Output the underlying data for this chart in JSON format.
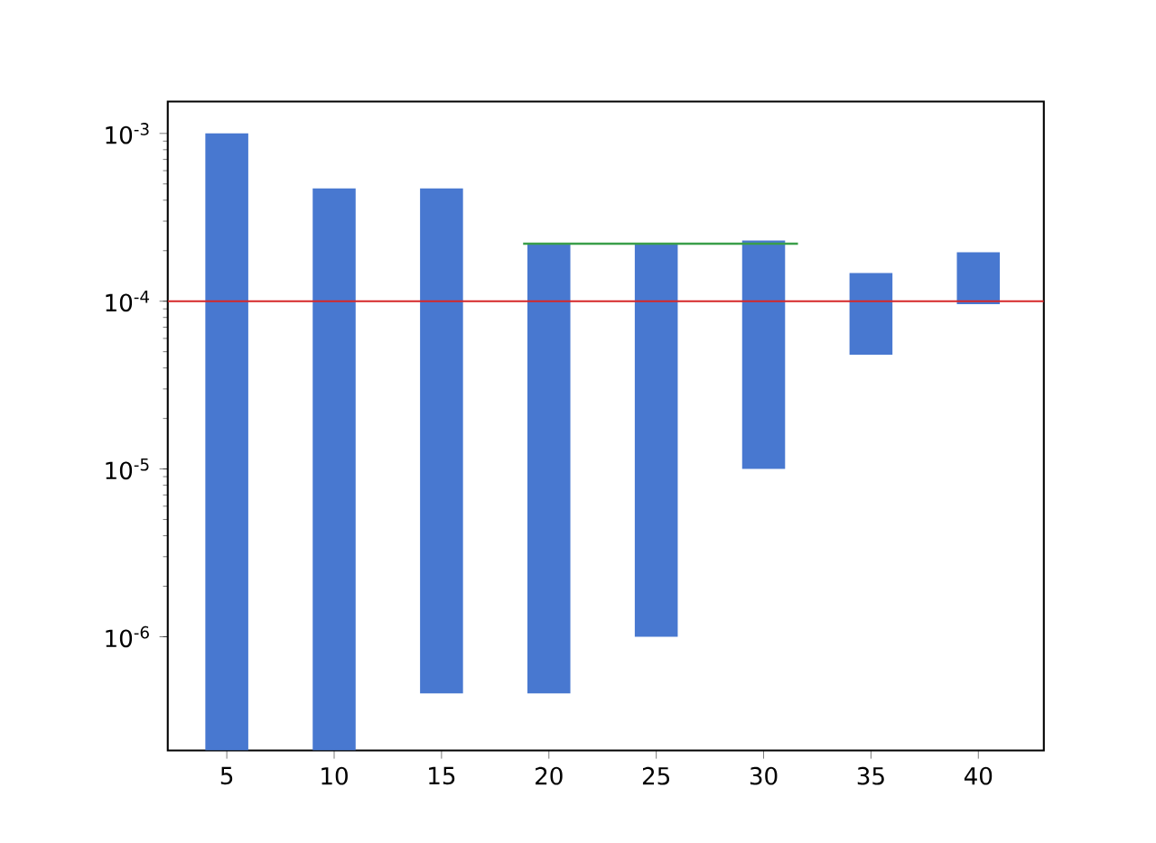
{
  "chart_data": {
    "type": "bar",
    "x": [
      5,
      10,
      15,
      20,
      25,
      30,
      35,
      40
    ],
    "values": [
      0.0009998,
      0.0004698,
      0.0004694,
      0.00021954,
      0.000219,
      0.00022,
      9.9e-05,
      0.0001
    ],
    "base": [
      2.1e-07,
      2.1e-07,
      4.6e-07,
      4.6e-07,
      1e-06,
      1e-05,
      4.8e-05,
      9.6e-05
    ],
    "color": "#4878d0",
    "series": [
      {
        "type": "line",
        "x": [
          18.8,
          31.6
        ],
        "values": [
          0.00022,
          0.00022
        ],
        "color": "#3a9e4a"
      }
    ],
    "ref_lines": [
      {
        "axis": "y",
        "value": 0.0001,
        "color": "#d62728"
      }
    ],
    "log": "y",
    "xlim": [
      2.25,
      43.05
    ],
    "ylim": [
      2.1e-07,
      0.00155
    ],
    "xticks": [
      5,
      10,
      15,
      20,
      25,
      30,
      35,
      40
    ],
    "yticks": [
      {
        "value": 1e-06,
        "label": "10$^{-6}$"
      },
      {
        "value": 1e-05,
        "label": "10$^{-5}$"
      },
      {
        "value": 0.0001,
        "label": "10$^{-4}$"
      },
      {
        "value": 0.001,
        "label": "10$^{-3}$"
      }
    ]
  }
}
